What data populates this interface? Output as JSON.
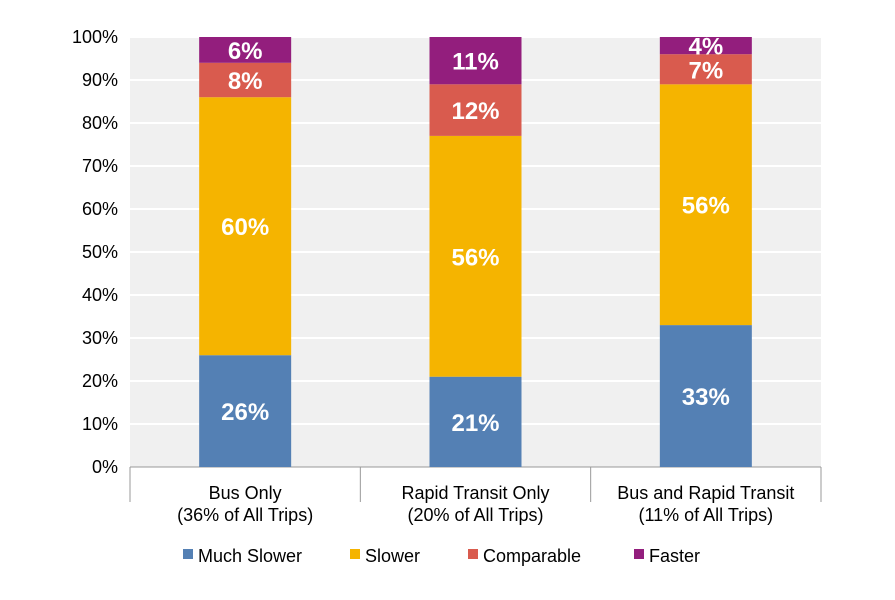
{
  "chart_data": {
    "type": "bar",
    "stacked": true,
    "categories": [
      [
        "Bus Only",
        "(36% of All Trips)"
      ],
      [
        "Rapid Transit Only",
        "(20% of All Trips)"
      ],
      [
        "Bus and Rapid Transit",
        "(11% of All Trips)"
      ]
    ],
    "series": [
      {
        "name": "Much Slower",
        "color": "#5480B4",
        "values": [
          26,
          21,
          33
        ]
      },
      {
        "name": "Slower",
        "color": "#F5B400",
        "values": [
          60,
          56,
          56
        ]
      },
      {
        "name": "Comparable",
        "color": "#D95B4E",
        "values": [
          8,
          12,
          7
        ]
      },
      {
        "name": "Faster",
        "color": "#931E7D",
        "values": [
          6,
          11,
          4
        ]
      }
    ],
    "value_suffix": "%",
    "ylim": [
      0,
      100
    ],
    "yticks": [
      "0%",
      "10%",
      "20%",
      "30%",
      "40%",
      "50%",
      "60%",
      "70%",
      "80%",
      "90%",
      "100%"
    ],
    "grid": true,
    "plot_background": "#F0F0F0",
    "legend": "bottom",
    "title": "",
    "xlabel": "",
    "ylabel": ""
  }
}
